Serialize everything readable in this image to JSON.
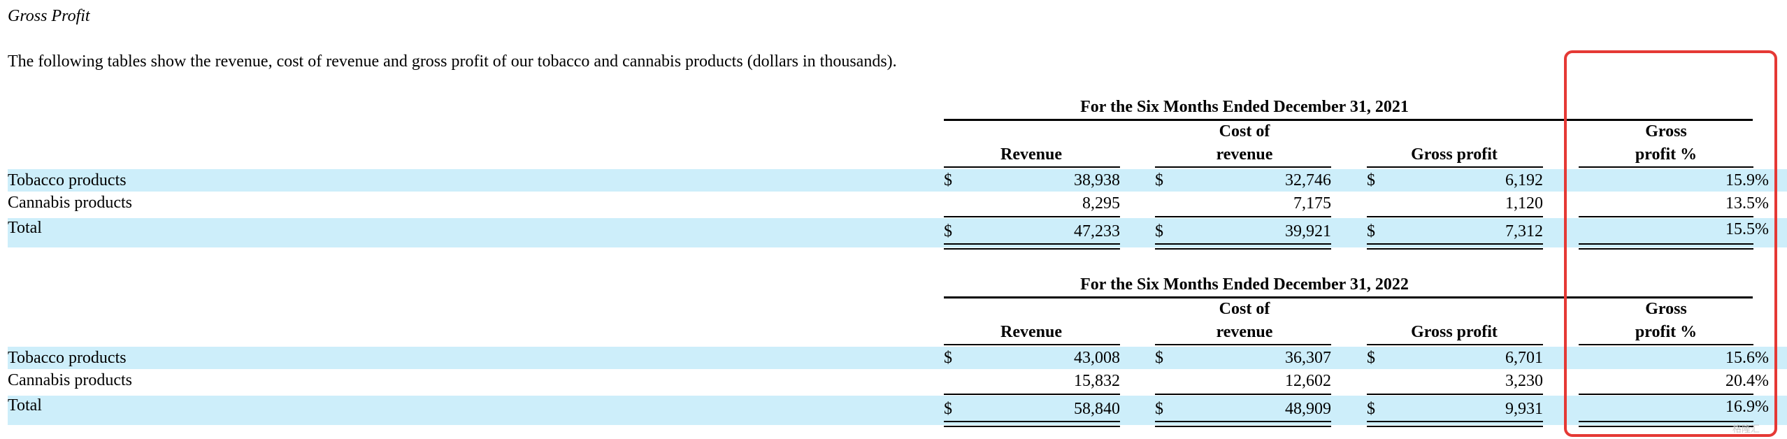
{
  "section_title": "Gross Profit",
  "intro_text": "The following tables show the revenue, cost of revenue and gross profit of our tobacco and cannabis products (dollars in thousands).",
  "currency_symbol": "$",
  "tables": [
    {
      "period_header": "For the Six Months Ended December 31, 2021",
      "columns": {
        "revenue": "Revenue",
        "cost_line1": "Cost of",
        "cost_line2": "revenue",
        "gross_profit": "Gross profit",
        "gp_pct_line1": "Gross",
        "gp_pct_line2": "profit %"
      },
      "rows": [
        {
          "label": "Tobacco products",
          "revenue": "38,938",
          "cost": "32,746",
          "gross_profit": "6,192",
          "gp_pct": "15.9%"
        },
        {
          "label": "Cannabis products",
          "revenue": "8,295",
          "cost": "7,175",
          "gross_profit": "1,120",
          "gp_pct": "13.5%"
        },
        {
          "label": "Total",
          "revenue": "47,233",
          "cost": "39,921",
          "gross_profit": "7,312",
          "gp_pct": "15.5%"
        }
      ]
    },
    {
      "period_header": "For the Six Months Ended December 31, 2022",
      "columns": {
        "revenue": "Revenue",
        "cost_line1": "Cost of",
        "cost_line2": "revenue",
        "gross_profit": "Gross profit",
        "gp_pct_line1": "Gross",
        "gp_pct_line2": "profit %"
      },
      "rows": [
        {
          "label": "Tobacco products",
          "revenue": "43,008",
          "cost": "36,307",
          "gross_profit": "6,701",
          "gp_pct": "15.6%"
        },
        {
          "label": "Cannabis products",
          "revenue": "15,832",
          "cost": "12,602",
          "gross_profit": "3,230",
          "gp_pct": "20.4%"
        },
        {
          "label": "Total",
          "revenue": "58,840",
          "cost": "48,909",
          "gross_profit": "9,931",
          "gp_pct": "16.9%"
        }
      ]
    }
  ],
  "watermark": "格隆汇",
  "colors": {
    "row_band": "#cdeefa",
    "highlight_border": "#e53935"
  }
}
